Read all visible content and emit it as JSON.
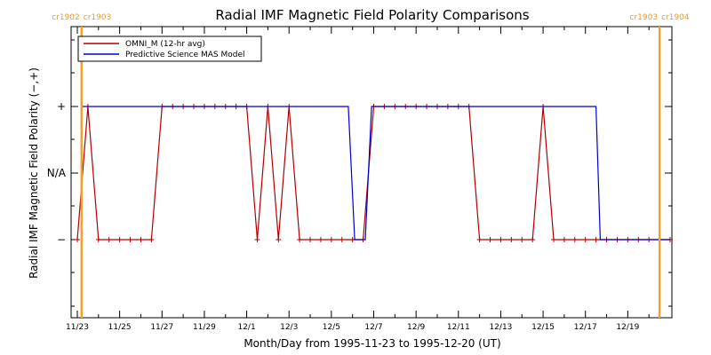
{
  "chart_data": {
    "type": "line",
    "title": "Radial IMF Magnetic Field Polarity Comparisons",
    "xlabel": "Month/Day from 1995-11-23 to 1995-12-20 (UT)",
    "ylabel": "Radial IMF Magnetic Field Polarity (−,+)",
    "x_range_days": [
      0,
      28
    ],
    "y_levels": {
      "plus": 1,
      "na": 0,
      "minus": -1
    },
    "y_tick_labels": [
      "+",
      "N/A",
      "−"
    ],
    "x_ticks": [
      {
        "day": 0,
        "label": "11/23"
      },
      {
        "day": 2,
        "label": "11/25"
      },
      {
        "day": 4,
        "label": "11/27"
      },
      {
        "day": 6,
        "label": "11/29"
      },
      {
        "day": 8,
        "label": "12/1"
      },
      {
        "day": 10,
        "label": "12/3"
      },
      {
        "day": 12,
        "label": "12/5"
      },
      {
        "day": 14,
        "label": "12/7"
      },
      {
        "day": 16,
        "label": "12/9"
      },
      {
        "day": 18,
        "label": "12/11"
      },
      {
        "day": 20,
        "label": "12/13"
      },
      {
        "day": 22,
        "label": "12/15"
      },
      {
        "day": 24,
        "label": "12/17"
      },
      {
        "day": 26,
        "label": "12/19"
      }
    ],
    "carrington": [
      {
        "day": 0.2,
        "label_left": "cr1902",
        "label_right": "cr1903"
      },
      {
        "day": 27.5,
        "label_left": "cr1903",
        "label_right": "cr1904"
      }
    ],
    "grid": false,
    "legend_position": "top-left",
    "series": [
      {
        "name": "OMNI_M (12-hr avg)",
        "color": "#b00000",
        "markers": true,
        "points": [
          [
            0.0,
            -1
          ],
          [
            0.5,
            1
          ],
          [
            1.0,
            -1
          ],
          [
            1.5,
            -1
          ],
          [
            2.0,
            -1
          ],
          [
            2.5,
            -1
          ],
          [
            3.0,
            -1
          ],
          [
            3.5,
            -1
          ],
          [
            4.0,
            1
          ],
          [
            4.5,
            1
          ],
          [
            5.0,
            1
          ],
          [
            5.5,
            1
          ],
          [
            6.0,
            1
          ],
          [
            6.5,
            1
          ],
          [
            7.0,
            1
          ],
          [
            7.5,
            1
          ],
          [
            8.0,
            1
          ],
          [
            8.5,
            -1
          ],
          [
            9.0,
            1
          ],
          [
            9.5,
            -1
          ],
          [
            10.0,
            1
          ],
          [
            10.5,
            -1
          ],
          [
            11.0,
            -1
          ],
          [
            11.5,
            -1
          ],
          [
            12.0,
            -1
          ],
          [
            12.5,
            -1
          ],
          [
            13.0,
            -1
          ],
          [
            13.5,
            -1
          ],
          [
            14.0,
            1
          ],
          [
            14.5,
            1
          ],
          [
            15.0,
            1
          ],
          [
            15.5,
            1
          ],
          [
            16.0,
            1
          ],
          [
            16.5,
            1
          ],
          [
            17.0,
            1
          ],
          [
            17.5,
            1
          ],
          [
            18.0,
            1
          ],
          [
            18.5,
            1
          ],
          [
            19.0,
            -1
          ],
          [
            19.5,
            -1
          ],
          [
            20.0,
            -1
          ],
          [
            20.5,
            -1
          ],
          [
            21.0,
            -1
          ],
          [
            21.5,
            -1
          ],
          [
            22.0,
            1
          ],
          [
            22.5,
            -1
          ],
          [
            23.0,
            -1
          ],
          [
            23.5,
            -1
          ],
          [
            24.0,
            -1
          ],
          [
            24.5,
            -1
          ],
          [
            25.0,
            -1
          ],
          [
            25.5,
            -1
          ],
          [
            26.0,
            -1
          ],
          [
            26.5,
            -1
          ],
          [
            27.0,
            -1
          ],
          [
            27.5,
            -1
          ],
          [
            28.0,
            -1
          ]
        ]
      },
      {
        "name": "Predictive Science MAS Model",
        "color": "#0000cc",
        "markers": false,
        "points": [
          [
            0.2,
            1
          ],
          [
            12.8,
            1
          ],
          [
            13.1,
            -1
          ],
          [
            13.6,
            -1
          ],
          [
            13.9,
            1
          ],
          [
            24.5,
            1
          ],
          [
            24.7,
            -1
          ],
          [
            28.0,
            -1
          ]
        ]
      }
    ]
  }
}
